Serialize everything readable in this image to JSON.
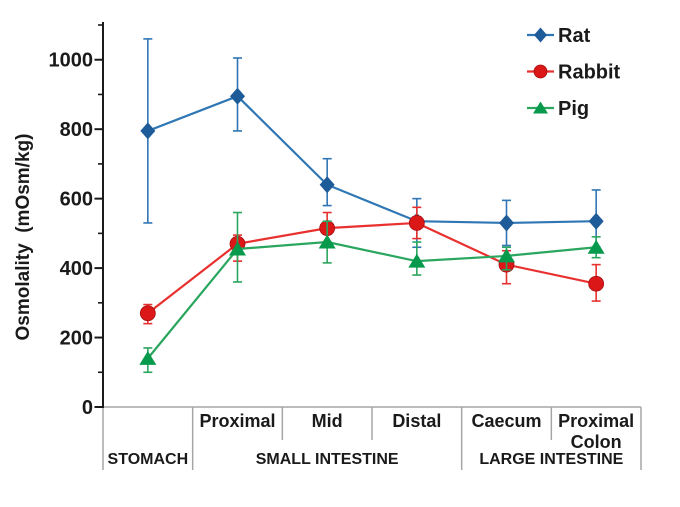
{
  "chart_data": {
    "type": "line",
    "title": "",
    "xlabel": "",
    "ylabel": "Osmolality  (mOsm/kg)",
    "ylim": [
      0,
      1100
    ],
    "yticks": [
      0,
      200,
      400,
      600,
      800,
      1000
    ],
    "yticks_minor": [
      100,
      300,
      500,
      700,
      900,
      1100
    ],
    "grid": false,
    "legend_position": "top-right",
    "axis_color": "#1a1a1a",
    "band_line_color": "#a6a6a6",
    "categories": [
      "Stomach",
      "Proximal small intestine",
      "Mid small intestine",
      "Distal small intestine",
      "Caecum",
      "Proximal colon"
    ],
    "x_axis_table": {
      "sub_labels": [
        [],
        [
          "Proximal"
        ],
        [
          "Mid"
        ],
        [
          "Distal"
        ],
        [
          "Caecum"
        ],
        [
          "Proximal",
          "Colon"
        ]
      ],
      "groups": [
        {
          "label": "STOMACH",
          "start": 0,
          "end": 1
        },
        {
          "label": "SMALL INTESTINE",
          "start": 1,
          "end": 4
        },
        {
          "label": "LARGE INTESTINE",
          "start": 4,
          "end": 6
        }
      ]
    },
    "series": [
      {
        "name": "Rat",
        "marker": "diamond",
        "line_color": "#2F76B5",
        "marker_color": "#1D5B99",
        "values": [
          795,
          895,
          640,
          535,
          530,
          535
        ],
        "err_low": [
          530,
          795,
          580,
          460,
          465,
          460
        ],
        "err_high": [
          1060,
          1005,
          715,
          600,
          595,
          625
        ]
      },
      {
        "name": "Rabbit",
        "marker": "circle",
        "line_color": "#E8312F",
        "marker_color": "#DC1717",
        "values": [
          270,
          470,
          515,
          530,
          410,
          355
        ],
        "err_low": [
          240,
          420,
          475,
          485,
          355,
          305
        ],
        "err_high": [
          295,
          495,
          560,
          575,
          450,
          410
        ]
      },
      {
        "name": "Pig",
        "marker": "triangle",
        "line_color": "#2AA65F",
        "marker_color": "#089A4C",
        "values": [
          140,
          455,
          475,
          420,
          435,
          460
        ],
        "err_low": [
          100,
          360,
          415,
          380,
          395,
          430
        ],
        "err_high": [
          170,
          560,
          535,
          475,
          460,
          490
        ]
      }
    ]
  }
}
